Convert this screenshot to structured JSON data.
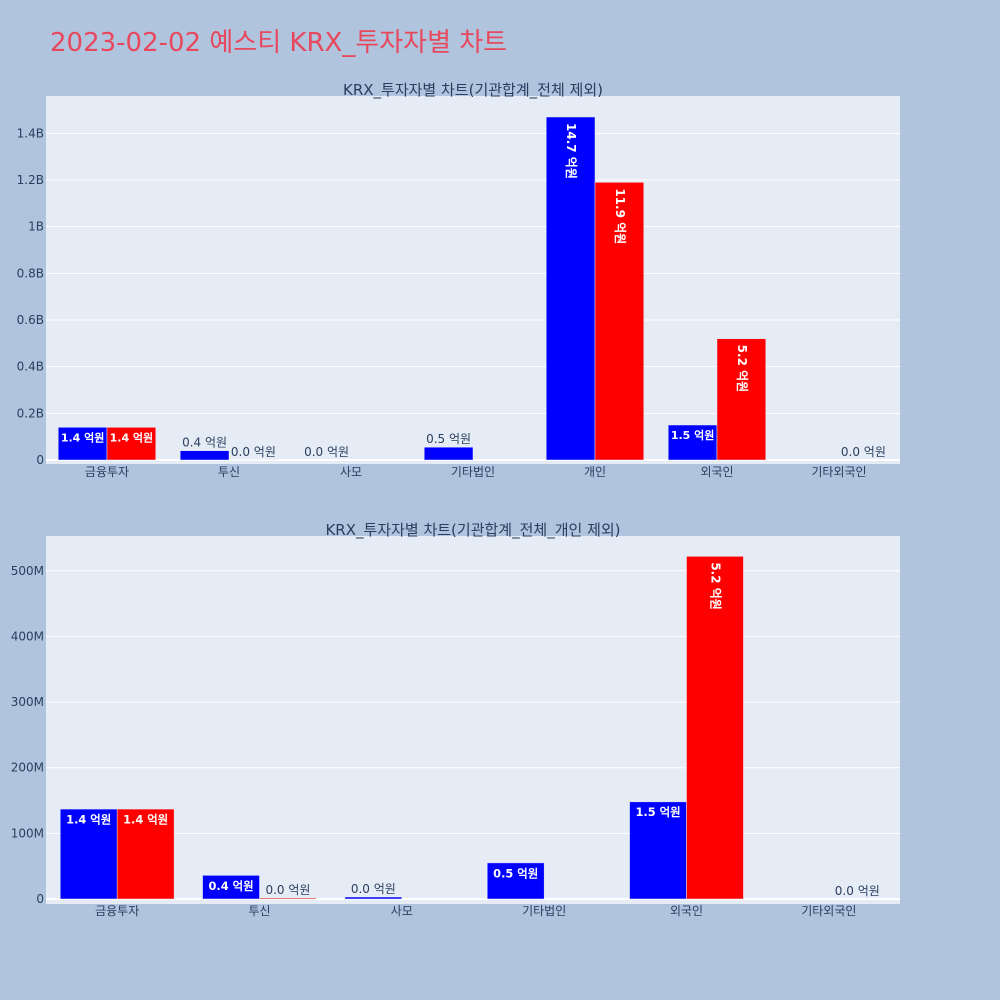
{
  "page_title": "2023-02-02 예스티 KRX_투자자별 차트",
  "colors": {
    "buy": "#0000ff",
    "sell": "#ff0000",
    "plot_bg": "#e5ecf6",
    "paper_bg": "#b0c4de",
    "title": "#e8485e"
  },
  "chart_data": [
    {
      "type": "bar",
      "title": "KRX_투자자별 차트(기관합계_전체 제외)",
      "categories": [
        "금융투자",
        "투신",
        "사모",
        "기타법인",
        "개인",
        "외국인",
        "기타외국인"
      ],
      "ylim": [
        0,
        1560000000
      ],
      "yticks": [
        0,
        200000000,
        400000000,
        600000000,
        800000000,
        1000000000,
        1200000000,
        1400000000
      ],
      "ytick_labels": [
        "0",
        "0.2B",
        "0.4B",
        "0.6B",
        "0.8B",
        "1B",
        "1.2B",
        "1.4B"
      ],
      "grid": true,
      "series": [
        {
          "color": "#0000ff",
          "values": [
            140000000,
            40000000,
            0,
            55000000,
            1470000000,
            150000000,
            null
          ],
          "labels": [
            "1.4 억원",
            "0.4 억원",
            "0.0 억원",
            "0.5 억원",
            "14.7 억원",
            "1.5 억원",
            ""
          ]
        },
        {
          "color": "#ff0000",
          "values": [
            140000000,
            1000000,
            null,
            null,
            1190000000,
            520000000,
            0
          ],
          "labels": [
            "1.4 억원",
            "0.0 억원",
            "",
            "",
            "11.9 억원",
            "5.2 억원",
            "0.0 억원"
          ]
        }
      ]
    },
    {
      "type": "bar",
      "title": "KRX_투자자별 차트(기관합계_전체_개인 제외)",
      "categories": [
        "금융투자",
        "투신",
        "사모",
        "기타법인",
        "외국인",
        "기타외국인"
      ],
      "ylim": [
        0,
        553000000
      ],
      "yticks": [
        0,
        100000000,
        200000000,
        300000000,
        400000000,
        500000000
      ],
      "ytick_labels": [
        "0",
        "100M",
        "200M",
        "300M",
        "400M",
        "500M"
      ],
      "grid": true,
      "series": [
        {
          "color": "#0000ff",
          "values": [
            137000000,
            36000000,
            3000000,
            55000000,
            148000000,
            null
          ],
          "labels": [
            "1.4 억원",
            "0.4 억원",
            "0.0 억원",
            "0.5 억원",
            "1.5 억원",
            ""
          ]
        },
        {
          "color": "#ff0000",
          "values": [
            137000000,
            1500000,
            null,
            null,
            522000000,
            0
          ],
          "labels": [
            "1.4 억원",
            "0.0 억원",
            "",
            "",
            "5.2 억원",
            "0.0 억원"
          ]
        }
      ]
    }
  ]
}
